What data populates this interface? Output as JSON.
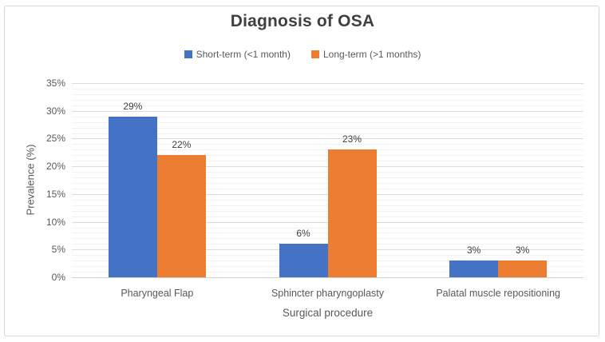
{
  "chart_data": {
    "type": "bar",
    "title": "Diagnosis of OSA",
    "categories": [
      "Pharyngeal Flap",
      "Sphincter pharyngoplasty",
      "Palatal muscle repositioning"
    ],
    "series": [
      {
        "name": "Short-term (<1 month)",
        "color": "#4472C4",
        "values": [
          29,
          6,
          3
        ],
        "data_labels": [
          "29%",
          "6%",
          "3%"
        ]
      },
      {
        "name": "Long-term (>1 months)",
        "color": "#ED7D31",
        "values": [
          22,
          23,
          3
        ],
        "data_labels": [
          "22%",
          "23%",
          "3%"
        ]
      }
    ],
    "xlabel": "Surgical procedure",
    "ylabel": "Prevalence (%)",
    "ylim": [
      0,
      35
    ],
    "y_major_step": 5,
    "y_minor_step": 1,
    "y_tick_labels": [
      "0%",
      "5%",
      "10%",
      "15%",
      "20%",
      "25%",
      "30%",
      "35%"
    ],
    "legend_position": "top-center",
    "grid": "horizontal major and minor gridlines",
    "data_label_position": "outside-end"
  },
  "colors": {
    "series_short_term": "#4472C4",
    "series_long_term": "#ED7D31",
    "major_gridline": "#D9D9D9",
    "minor_gridline": "#F2F2F2",
    "axis_line": "#D0D0D0",
    "frame_border": "#D7D7D7",
    "title_text": "#404040",
    "axis_text": "#595959"
  }
}
